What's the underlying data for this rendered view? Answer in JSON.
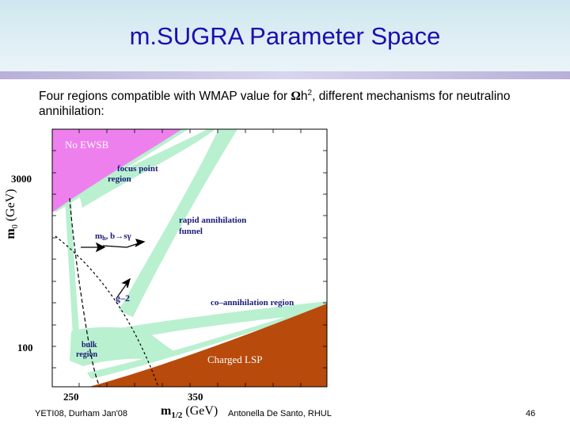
{
  "slide": {
    "title": "m.SUGRA Parameter Space",
    "subtitle_lead": "Four regions compatible with WMAP value for ",
    "omega_symbol": "Ω",
    "subtitle_h": "h",
    "subtitle_sup": "2",
    "subtitle_rest": ", different mechanisms for neutralino annihilation:",
    "footer_left": "YETI08, Durham Jan'08",
    "footer_center": "Antonella De Santo, RHUL",
    "page_number": "46"
  },
  "diagram": {
    "y_ticks": [
      "3000",
      "100"
    ],
    "x_ticks": [
      "250",
      "350"
    ],
    "y_axis_label": "m",
    "y_axis_sub": "0",
    "y_axis_unit": "(GeV)",
    "x_axis_label": "m",
    "x_axis_sub": "1/2",
    "x_axis_unit": "(GeV)",
    "regions": {
      "no_ewsb": "No EWSB",
      "focus_point_1": "focus point",
      "focus_point_2": "region",
      "rapid_annihilation_1": "rapid annihilation",
      "rapid_annihilation_2": "funnel",
      "mh_constraint": "m",
      "mh_sub": "h",
      "mh_rest": ", b→sγ",
      "g2": "g–2",
      "coannihilation": "co–annihilation region",
      "bulk_1": "bulk",
      "bulk_2": "region",
      "charged_lsp": "Charged LSP"
    },
    "colors": {
      "no_ewsb": "#ee80ee",
      "allowed_band": "#b9f0cf",
      "charged_lsp": "#b84a0c",
      "label_blue": "#1a1a7a"
    }
  }
}
